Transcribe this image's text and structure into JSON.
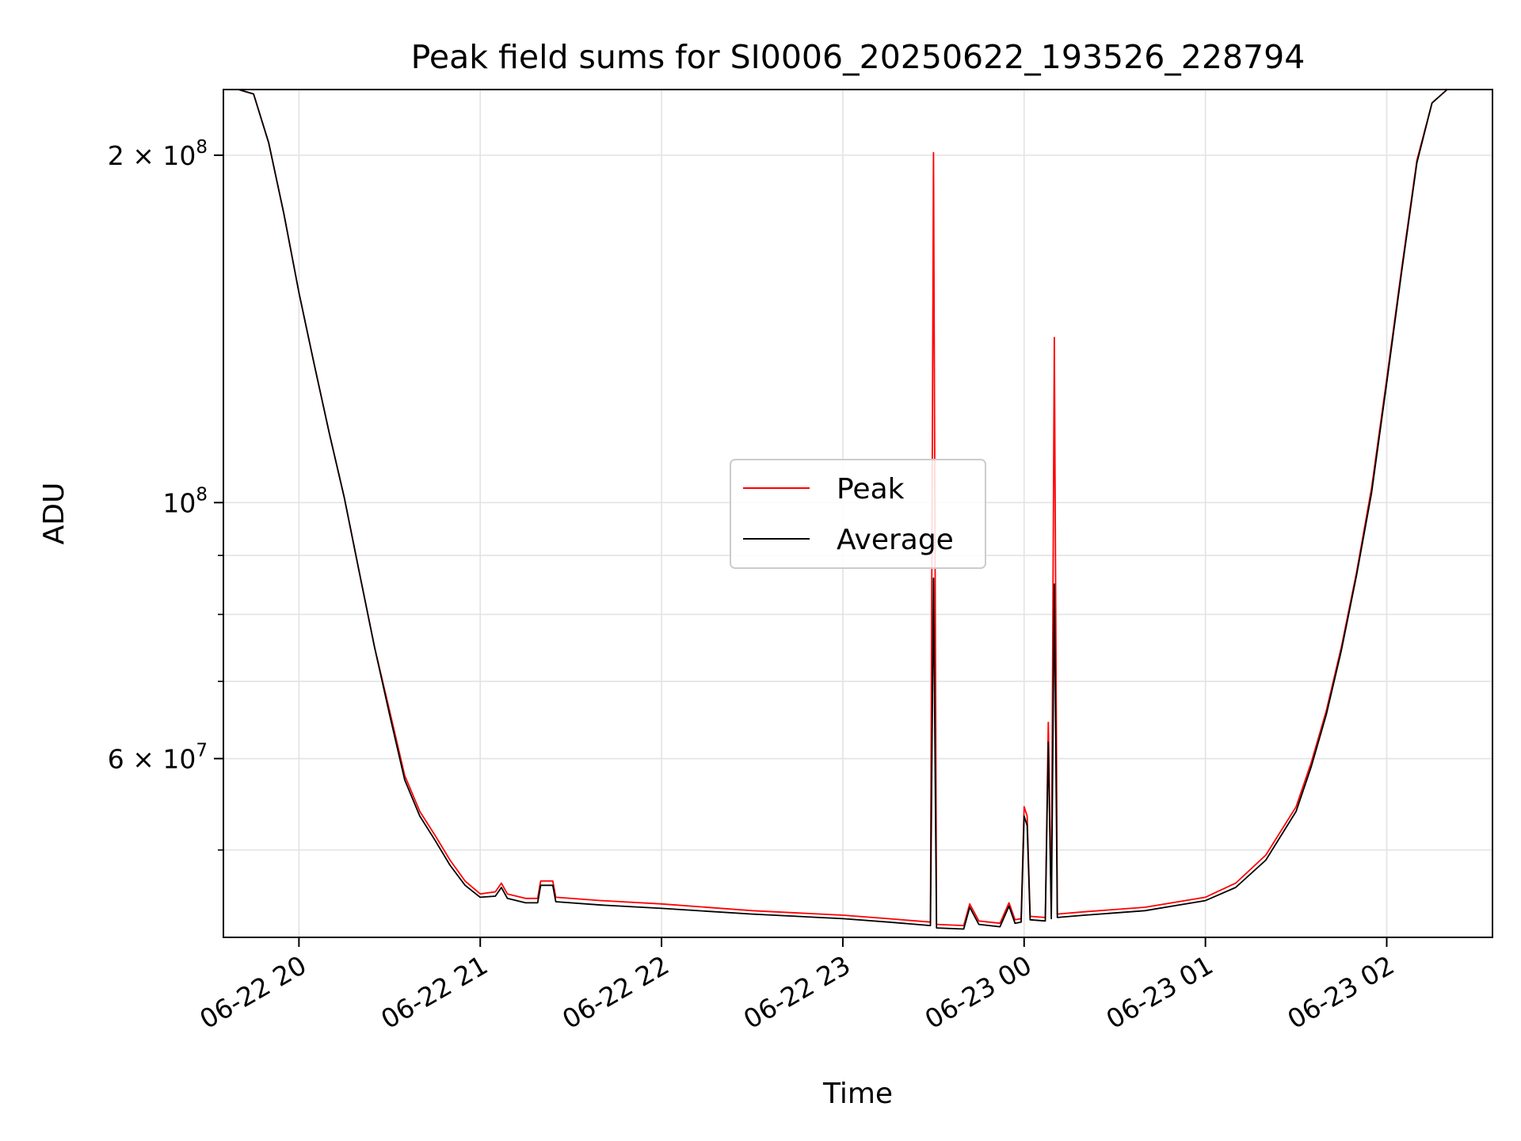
{
  "chart_data": {
    "type": "line",
    "title": "Peak field sums for SI0006_20250622_193526_228794",
    "xlabel": "Time",
    "ylabel": "ADU",
    "yscale": "log",
    "xlim": [
      "2025-06-22 19:35",
      "2025-06-23 02:35"
    ],
    "ylim": [
      42000000,
      228000000
    ],
    "grid": true,
    "legend_position": "center",
    "x_ticks": [
      {
        "t": "2025-06-22 20:00",
        "label": "06-22 20"
      },
      {
        "t": "2025-06-22 21:00",
        "label": "06-22 21"
      },
      {
        "t": "2025-06-22 22:00",
        "label": "06-22 22"
      },
      {
        "t": "2025-06-22 23:00",
        "label": "06-22 23"
      },
      {
        "t": "2025-06-23 00:00",
        "label": "06-23 00"
      },
      {
        "t": "2025-06-23 01:00",
        "label": "06-23 01"
      },
      {
        "t": "2025-06-23 02:00",
        "label": "06-23 02"
      }
    ],
    "y_major_ticks": [
      {
        "value": 100000000,
        "mantissa": "",
        "exponent": "8",
        "base": "10"
      },
      {
        "value": 60000000,
        "mantissa": "6 × ",
        "exponent": "7",
        "base": "10"
      },
      {
        "value": 200000000,
        "mantissa": "2 × ",
        "exponent": "8",
        "base": "10"
      }
    ],
    "y_minor_ticks": [
      50000000,
      70000000,
      80000000,
      90000000
    ],
    "series": [
      {
        "name": "Peak",
        "color": "#ff0000",
        "points": [
          [
            "2025-06-22 19:35",
            228000000
          ],
          [
            "2025-06-22 19:40",
            228000000
          ],
          [
            "2025-06-22 19:45",
            226000000
          ],
          [
            "2025-06-22 19:50",
            205000000
          ],
          [
            "2025-06-22 19:55",
            178000000
          ],
          [
            "2025-06-22 20:00",
            152000000
          ],
          [
            "2025-06-22 20:05",
            132000000
          ],
          [
            "2025-06-22 20:10",
            115000000
          ],
          [
            "2025-06-22 20:15",
            101000000
          ],
          [
            "2025-06-22 20:20",
            87000000
          ],
          [
            "2025-06-22 20:25",
            75000000
          ],
          [
            "2025-06-22 20:30",
            66000000
          ],
          [
            "2025-06-22 20:35",
            58000000
          ],
          [
            "2025-06-22 20:40",
            54000000
          ],
          [
            "2025-06-22 20:45",
            51500000
          ],
          [
            "2025-06-22 20:50",
            49000000
          ],
          [
            "2025-06-22 20:55",
            47000000
          ],
          [
            "2025-06-22 21:00",
            45800000
          ],
          [
            "2025-06-22 21:05",
            46000000
          ],
          [
            "2025-06-22 21:07",
            46800000
          ],
          [
            "2025-06-22 21:09",
            45800000
          ],
          [
            "2025-06-22 21:15",
            45400000
          ],
          [
            "2025-06-22 21:19",
            45400000
          ],
          [
            "2025-06-22 21:20",
            47000000
          ],
          [
            "2025-06-22 21:24",
            47000000
          ],
          [
            "2025-06-22 21:25",
            45500000
          ],
          [
            "2025-06-22 21:40",
            45200000
          ],
          [
            "2025-06-22 22:00",
            44900000
          ],
          [
            "2025-06-22 22:30",
            44300000
          ],
          [
            "2025-06-22 23:00",
            43900000
          ],
          [
            "2025-06-22 23:15",
            43600000
          ],
          [
            "2025-06-22 23:29",
            43300000
          ],
          [
            "2025-06-22 23:30",
            201000000
          ],
          [
            "2025-06-22 23:31",
            43100000
          ],
          [
            "2025-06-22 23:40",
            43000000
          ],
          [
            "2025-06-22 23:42",
            44900000
          ],
          [
            "2025-06-22 23:45",
            43400000
          ],
          [
            "2025-06-22 23:52",
            43200000
          ],
          [
            "2025-06-22 23:55",
            45000000
          ],
          [
            "2025-06-22 23:57",
            43500000
          ],
          [
            "2025-06-22 23:59",
            43600000
          ],
          [
            "2025-06-23 00:00",
            54500000
          ],
          [
            "2025-06-23 00:01",
            53500000
          ],
          [
            "2025-06-23 00:02",
            43800000
          ],
          [
            "2025-06-23 00:07",
            43700000
          ],
          [
            "2025-06-23 00:08",
            64500000
          ],
          [
            "2025-06-23 00:09",
            43900000
          ],
          [
            "2025-06-23 00:10",
            139000000
          ],
          [
            "2025-06-23 00:11",
            44000000
          ],
          [
            "2025-06-23 00:20",
            44200000
          ],
          [
            "2025-06-23 00:40",
            44600000
          ],
          [
            "2025-06-23 01:00",
            45500000
          ],
          [
            "2025-06-23 01:10",
            46800000
          ],
          [
            "2025-06-23 01:20",
            49500000
          ],
          [
            "2025-06-23 01:30",
            54500000
          ],
          [
            "2025-06-23 01:35",
            59500000
          ],
          [
            "2025-06-23 01:40",
            66000000
          ],
          [
            "2025-06-23 01:45",
            75000000
          ],
          [
            "2025-06-23 01:50",
            87000000
          ],
          [
            "2025-06-23 01:55",
            103000000
          ],
          [
            "2025-06-23 02:00",
            128000000
          ],
          [
            "2025-06-23 02:05",
            160000000
          ],
          [
            "2025-06-23 02:10",
            198000000
          ],
          [
            "2025-06-23 02:15",
            222000000
          ],
          [
            "2025-06-23 02:20",
            228000000
          ],
          [
            "2025-06-23 02:35",
            228000000
          ]
        ]
      },
      {
        "name": "Average",
        "color": "#000000",
        "points": [
          [
            "2025-06-22 19:35",
            228000000
          ],
          [
            "2025-06-22 19:40",
            228000000
          ],
          [
            "2025-06-22 19:45",
            226000000
          ],
          [
            "2025-06-22 19:50",
            205000000
          ],
          [
            "2025-06-22 19:55",
            178000000
          ],
          [
            "2025-06-22 20:00",
            152000000
          ],
          [
            "2025-06-22 20:05",
            132000000
          ],
          [
            "2025-06-22 20:10",
            115000000
          ],
          [
            "2025-06-22 20:15",
            101000000
          ],
          [
            "2025-06-22 20:20",
            87000000
          ],
          [
            "2025-06-22 20:25",
            75000000
          ],
          [
            "2025-06-22 20:30",
            65500000
          ],
          [
            "2025-06-22 20:35",
            57500000
          ],
          [
            "2025-06-22 20:40",
            53500000
          ],
          [
            "2025-06-22 20:45",
            51000000
          ],
          [
            "2025-06-22 20:50",
            48500000
          ],
          [
            "2025-06-22 20:55",
            46600000
          ],
          [
            "2025-06-22 21:00",
            45500000
          ],
          [
            "2025-06-22 21:05",
            45600000
          ],
          [
            "2025-06-22 21:07",
            46400000
          ],
          [
            "2025-06-22 21:09",
            45400000
          ],
          [
            "2025-06-22 21:15",
            45000000
          ],
          [
            "2025-06-22 21:19",
            45000000
          ],
          [
            "2025-06-22 21:20",
            46600000
          ],
          [
            "2025-06-22 21:24",
            46600000
          ],
          [
            "2025-06-22 21:25",
            45100000
          ],
          [
            "2025-06-22 21:40",
            44800000
          ],
          [
            "2025-06-22 22:00",
            44500000
          ],
          [
            "2025-06-22 22:30",
            44000000
          ],
          [
            "2025-06-22 23:00",
            43600000
          ],
          [
            "2025-06-22 23:15",
            43300000
          ],
          [
            "2025-06-22 23:29",
            43000000
          ],
          [
            "2025-06-22 23:30",
            86000000
          ],
          [
            "2025-06-22 23:31",
            42800000
          ],
          [
            "2025-06-22 23:40",
            42700000
          ],
          [
            "2025-06-22 23:42",
            44600000
          ],
          [
            "2025-06-22 23:45",
            43100000
          ],
          [
            "2025-06-22 23:52",
            42900000
          ],
          [
            "2025-06-22 23:55",
            44700000
          ],
          [
            "2025-06-22 23:57",
            43200000
          ],
          [
            "2025-06-22 23:59",
            43300000
          ],
          [
            "2025-06-23 00:00",
            53500000
          ],
          [
            "2025-06-23 00:01",
            52500000
          ],
          [
            "2025-06-23 00:02",
            43500000
          ],
          [
            "2025-06-23 00:07",
            43400000
          ],
          [
            "2025-06-23 00:08",
            62000000
          ],
          [
            "2025-06-23 00:09",
            43600000
          ],
          [
            "2025-06-23 00:10",
            85000000
          ],
          [
            "2025-06-23 00:11",
            43700000
          ],
          [
            "2025-06-23 00:20",
            43900000
          ],
          [
            "2025-06-23 00:40",
            44300000
          ],
          [
            "2025-06-23 01:00",
            45200000
          ],
          [
            "2025-06-23 01:10",
            46400000
          ],
          [
            "2025-06-23 01:20",
            49000000
          ],
          [
            "2025-06-23 01:30",
            54000000
          ],
          [
            "2025-06-23 01:35",
            59000000
          ],
          [
            "2025-06-23 01:40",
            65500000
          ],
          [
            "2025-06-23 01:45",
            74500000
          ],
          [
            "2025-06-23 01:50",
            86500000
          ],
          [
            "2025-06-23 01:55",
            102000000
          ],
          [
            "2025-06-23 02:00",
            127000000
          ],
          [
            "2025-06-23 02:05",
            159000000
          ],
          [
            "2025-06-23 02:10",
            197000000
          ],
          [
            "2025-06-23 02:15",
            222000000
          ],
          [
            "2025-06-23 02:20",
            228000000
          ],
          [
            "2025-06-23 02:35",
            228000000
          ]
        ]
      }
    ]
  }
}
